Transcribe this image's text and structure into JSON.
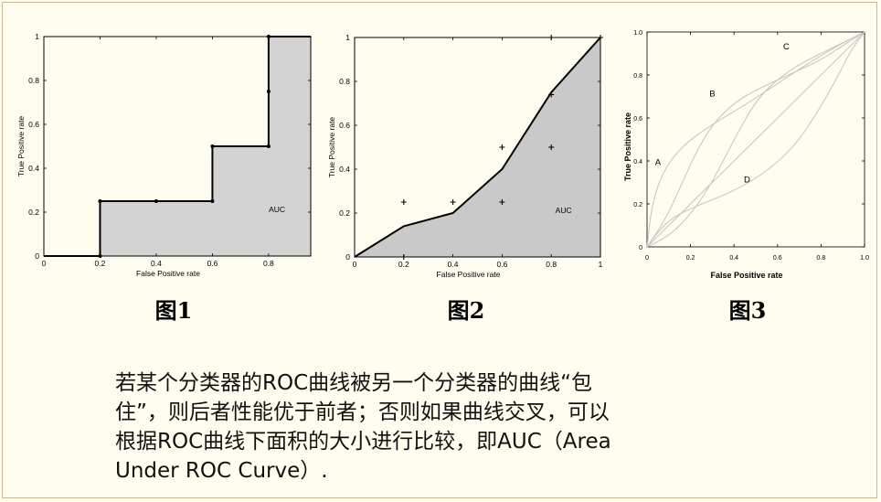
{
  "figures": [
    {
      "caption": "图1",
      "chart_data": {
        "type": "line",
        "subtype": "roc-step-curve-with-shaded-area",
        "xlabel": "False Positive rate",
        "ylabel": "True Positive rate",
        "xlim": [
          0,
          0.95
        ],
        "ylim": [
          0,
          1
        ],
        "x_ticks": [
          "0",
          "0.2",
          "0.4",
          "0.6",
          "0.8"
        ],
        "y_ticks": [
          "0",
          "0.2",
          "0.4",
          "0.6",
          "0.8",
          "1"
        ],
        "curve": {
          "x": [
            0,
            0.2,
            0.2,
            0.4,
            0.6,
            0.6,
            0.8,
            0.8,
            0.8,
            0.8,
            0.95
          ],
          "y": [
            0,
            0,
            0.25,
            0.25,
            0.25,
            0.5,
            0.5,
            0.75,
            1,
            1,
            1
          ]
        },
        "markers": {
          "x": [
            0.2,
            0.2,
            0.4,
            0.6,
            0.6,
            0.8,
            0.8,
            0.8
          ],
          "y": [
            0,
            0.25,
            0.25,
            0.25,
            0.5,
            0.5,
            0.75,
            1
          ]
        },
        "area_label": "AUC",
        "fill_color": "#d3d3d3"
      }
    },
    {
      "caption": "图2",
      "chart_data": {
        "type": "line",
        "subtype": "roc-curve-with-shaded-area",
        "xlabel": "False Positive rate",
        "ylabel": "True Positive rate",
        "xlim": [
          0,
          1
        ],
        "ylim": [
          0,
          1
        ],
        "x_ticks": [
          "0",
          "0.2",
          "0.4",
          "0.6",
          "0.8",
          "1"
        ],
        "y_ticks": [
          "0",
          "0.2",
          "0.4",
          "0.6",
          "0.8",
          "1"
        ],
        "curve": {
          "x": [
            0,
            0.2,
            0.4,
            0.6,
            0.8,
            1
          ],
          "y": [
            0,
            0.14,
            0.2,
            0.4,
            0.75,
            1
          ]
        },
        "plus_markers": {
          "x": [
            0.2,
            0.4,
            0.6,
            0.6,
            0.8,
            0.8,
            0.8,
            0.2,
            1
          ],
          "y": [
            0.25,
            0.25,
            0.5,
            0.25,
            0.5,
            0.74,
            1,
            0,
            1
          ]
        },
        "area_label": "AUC",
        "fill_color": "#c9c9c9"
      }
    },
    {
      "caption": "图3",
      "chart_data": {
        "type": "line",
        "subtype": "multiple-roc-curves",
        "xlabel": "False    Positive    rate",
        "ylabel": "True   Positive   rate",
        "xlim": [
          0,
          1
        ],
        "ylim": [
          0,
          1
        ],
        "x_ticks": [
          "0",
          "0.2",
          "0.4",
          "0.6",
          "0.8",
          "1.0"
        ],
        "y_ticks": [
          "0",
          "0.2",
          "0.4",
          "0.6",
          "0.8",
          "1.0"
        ],
        "series": [
          {
            "name": "A",
            "x": [
              0,
              0.02,
              0.06,
              0.12,
              0.2,
              0.3,
              0.45,
              0.6,
              0.75,
              0.9,
              1
            ],
            "y": [
              0,
              0.18,
              0.32,
              0.42,
              0.5,
              0.57,
              0.66,
              0.76,
              0.86,
              0.95,
              1
            ]
          },
          {
            "name": "B",
            "x": [
              0,
              0.08,
              0.15,
              0.22,
              0.3,
              0.4,
              0.5,
              0.65,
              0.8,
              0.92,
              1
            ],
            "y": [
              0,
              0.12,
              0.27,
              0.43,
              0.57,
              0.67,
              0.73,
              0.8,
              0.87,
              0.95,
              1
            ]
          },
          {
            "name": "C",
            "x": [
              0,
              0.1,
              0.2,
              0.3,
              0.4,
              0.5,
              0.6,
              0.7,
              0.8,
              0.9,
              1
            ],
            "y": [
              0,
              0.05,
              0.15,
              0.3,
              0.5,
              0.68,
              0.78,
              0.85,
              0.9,
              0.95,
              1
            ]
          },
          {
            "name": "D",
            "x": [
              0,
              0.05,
              0.12,
              0.25,
              0.4,
              0.55,
              0.68,
              0.78,
              0.87,
              0.94,
              1
            ],
            "y": [
              0,
              0.07,
              0.14,
              0.2,
              0.26,
              0.35,
              0.47,
              0.62,
              0.78,
              0.92,
              1
            ]
          },
          {
            "name": "",
            "x": [
              0,
              1
            ],
            "y": [
              0,
              1
            ]
          }
        ],
        "curve_labels": [
          {
            "text": "A",
            "x": 0.05,
            "y": 0.38
          },
          {
            "text": "B",
            "x": 0.3,
            "y": 0.7
          },
          {
            "text": "C",
            "x": 0.64,
            "y": 0.92
          },
          {
            "text": "D",
            "x": 0.46,
            "y": 0.3
          }
        ],
        "line_color": "#c8c8c8"
      }
    }
  ],
  "caption_text": "若某个分类器的ROC曲线被另一个分类器的曲线“包\n住”，则后者性能优于前者；否则如果曲线交叉，可以\n根据ROC曲线下面积的大小进行比较，即AUC（Area\nUnder ROC Curve）."
}
